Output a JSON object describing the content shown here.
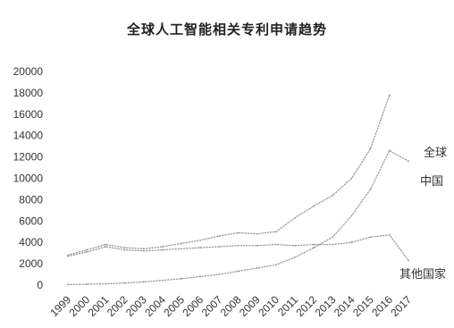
{
  "chart_data": {
    "type": "line",
    "title": "全球人工智能相关专利申请趋势",
    "xlabel": "",
    "ylabel": "",
    "categories": [
      "1999",
      "2000",
      "2001",
      "2002",
      "2003",
      "2004",
      "2005",
      "2006",
      "2007",
      "2008",
      "2009",
      "2010",
      "2011",
      "2012",
      "2013",
      "2014",
      "2015",
      "2016",
      "2017"
    ],
    "ylim": [
      0,
      20000
    ],
    "yticks": [
      "20000",
      "18000",
      "16000",
      "14000",
      "12000",
      "10000",
      "8000",
      "6000",
      "4000",
      "2000",
      "0"
    ],
    "grid": false,
    "legend": "inline",
    "series": [
      {
        "name": "全球",
        "color": "#9a9a9a",
        "values": [
          2800,
          3300,
          3800,
          3500,
          3400,
          3600,
          3900,
          4200,
          4600,
          4900,
          4800,
          5000,
          6300,
          7400,
          8400,
          10000,
          12800,
          17800,
          null
        ]
      },
      {
        "name": "中国",
        "color": "#9a9a9a",
        "values": [
          50,
          80,
          120,
          200,
          300,
          450,
          600,
          800,
          1000,
          1300,
          1600,
          1900,
          2600,
          3500,
          4500,
          6500,
          9000,
          12600,
          11600
        ]
      },
      {
        "name": "其他国家",
        "color": "#9a9a9a",
        "values": [
          2700,
          3100,
          3600,
          3300,
          3200,
          3300,
          3400,
          3500,
          3600,
          3700,
          3700,
          3800,
          3700,
          3800,
          3800,
          4000,
          4500,
          4700,
          2300
        ]
      }
    ]
  }
}
